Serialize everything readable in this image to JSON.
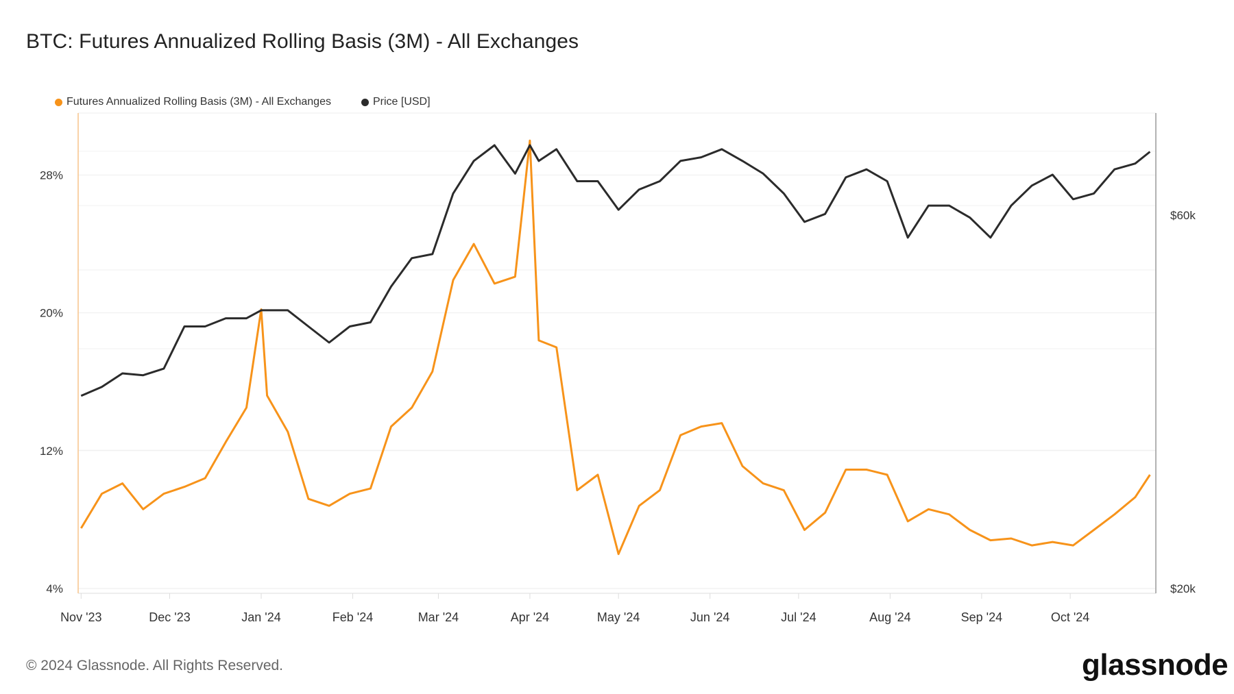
{
  "chart_data": {
    "type": "line",
    "title": "BTC: Futures Annualized Rolling Basis (3M) - All Exchanges",
    "xlim": [
      "2023-10-31",
      "2024-10-30"
    ],
    "x_ticks": [
      {
        "date": "2023-11-01",
        "label": "Nov '23"
      },
      {
        "date": "2023-12-01",
        "label": "Dec '23"
      },
      {
        "date": "2024-01-01",
        "label": "Jan '24"
      },
      {
        "date": "2024-02-01",
        "label": "Feb '24"
      },
      {
        "date": "2024-03-01",
        "label": "Mar '24"
      },
      {
        "date": "2024-04-01",
        "label": "Apr '24"
      },
      {
        "date": "2024-05-01",
        "label": "May '24"
      },
      {
        "date": "2024-06-01",
        "label": "Jun '24"
      },
      {
        "date": "2024-07-01",
        "label": "Jul '24"
      },
      {
        "date": "2024-08-01",
        "label": "Aug '24"
      },
      {
        "date": "2024-09-01",
        "label": "Sep '24"
      },
      {
        "date": "2024-10-01",
        "label": "Oct '24"
      }
    ],
    "y_left": {
      "ylim": [
        3.72,
        31.6
      ],
      "ticks": [
        4,
        12,
        20,
        28
      ],
      "tick_labels": [
        "4%",
        "12%",
        "20%",
        "28%"
      ]
    },
    "y_right": {
      "scale": "log",
      "ylim": [
        20000,
        78000
      ],
      "ticks": [
        20000,
        60000
      ],
      "tick_labels": [
        "$20k",
        "$60k"
      ]
    },
    "grid": true,
    "legend_position": "top-left",
    "dates": [
      "2023-11-01",
      "2023-11-08",
      "2023-11-15",
      "2023-11-22",
      "2023-11-29",
      "2023-12-06",
      "2023-12-13",
      "2023-12-20",
      "2023-12-27",
      "2024-01-01",
      "2024-01-03",
      "2024-01-10",
      "2024-01-17",
      "2024-01-24",
      "2024-01-31",
      "2024-02-07",
      "2024-02-14",
      "2024-02-21",
      "2024-02-28",
      "2024-03-06",
      "2024-03-13",
      "2024-03-20",
      "2024-03-27",
      "2024-04-01",
      "2024-04-04",
      "2024-04-10",
      "2024-04-17",
      "2024-04-24",
      "2024-05-01",
      "2024-05-08",
      "2024-05-15",
      "2024-05-22",
      "2024-05-29",
      "2024-06-05",
      "2024-06-12",
      "2024-06-19",
      "2024-06-26",
      "2024-07-03",
      "2024-07-10",
      "2024-07-17",
      "2024-07-24",
      "2024-07-31",
      "2024-08-07",
      "2024-08-14",
      "2024-08-21",
      "2024-08-28",
      "2024-09-04",
      "2024-09-11",
      "2024-09-18",
      "2024-09-25",
      "2024-10-02",
      "2024-10-09",
      "2024-10-16",
      "2024-10-23",
      "2024-10-28"
    ],
    "series": [
      {
        "name": "Futures Annualized Rolling Basis (3M) - All Exchanges",
        "axis": "left",
        "color": "#f7931a",
        "values": [
          7.5,
          9.5,
          10.1,
          8.6,
          9.5,
          9.9,
          10.4,
          12.5,
          14.5,
          20.2,
          15.2,
          13.1,
          9.2,
          8.8,
          9.5,
          9.8,
          13.4,
          14.5,
          16.6,
          21.9,
          24.0,
          21.7,
          22.1,
          30.0,
          18.4,
          18.0,
          9.7,
          10.6,
          6.0,
          8.8,
          9.7,
          12.9,
          13.4,
          13.6,
          11.1,
          10.1,
          9.7,
          7.4,
          8.4,
          10.9,
          10.9,
          10.6,
          7.9,
          8.6,
          8.3,
          7.4,
          6.8,
          6.9,
          6.5,
          6.7,
          6.5,
          7.4,
          8.3,
          9.3,
          10.6
        ]
      },
      {
        "name": "Price [USD]",
        "axis": "right",
        "color": "#2b2b2b",
        "values": [
          35000,
          35900,
          37300,
          37100,
          37800,
          42600,
          42600,
          43600,
          43600,
          44600,
          44600,
          44600,
          42600,
          40700,
          42600,
          43100,
          47700,
          51700,
          52300,
          62100,
          68100,
          71200,
          65700,
          71200,
          68100,
          70400,
          64300,
          64300,
          59300,
          62800,
          64300,
          68100,
          68800,
          70400,
          68100,
          65700,
          62100,
          57300,
          58600,
          65000,
          66500,
          64300,
          54800,
          60000,
          60000,
          58000,
          54800,
          60000,
          63500,
          65500,
          61100,
          62100,
          66500,
          67600,
          69900
        ]
      }
    ]
  },
  "footer": {
    "copyright": "© 2024 Glassnode. All Rights Reserved.",
    "logo_text": "glassnode"
  }
}
